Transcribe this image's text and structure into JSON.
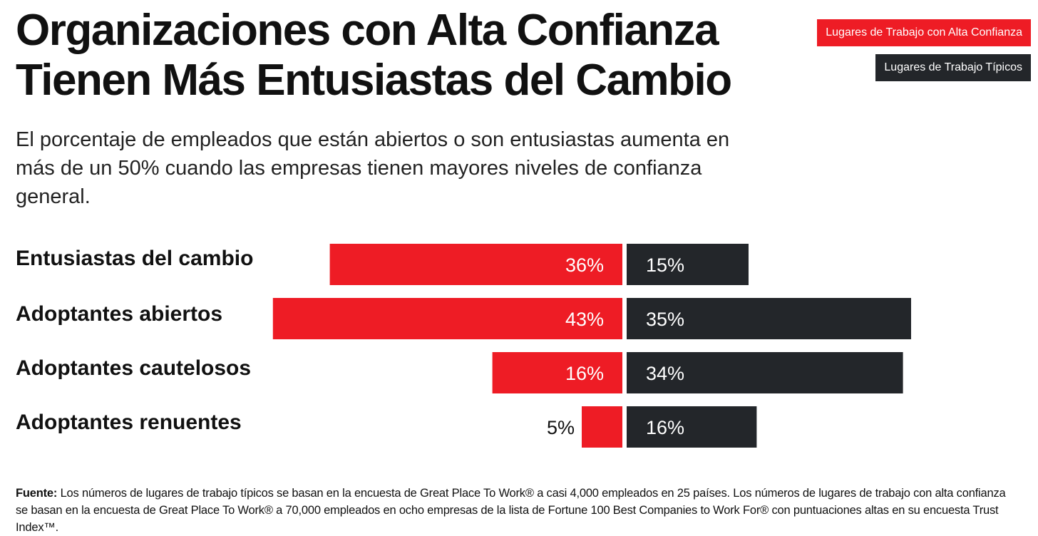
{
  "title_line1": "Organizaciones con Alta Confianza",
  "title_line2": "Tienen Más Entusiastas del Cambio",
  "subtitle": "El porcentaje de empleados que están abiertos o son entusiastas aumenta en más de un 50% cuando las empresas tienen mayores niveles de confianza general.",
  "colors": {
    "high_trust": "#ee1c25",
    "typical": "#23262a",
    "text": "#111111"
  },
  "chart_data": {
    "type": "bar",
    "orientation": "diverging-horizontal",
    "title": "Organizaciones con Alta Confianza Tienen Más Entusiastas del Cambio",
    "categories": [
      "Entusiastas del cambio",
      "Adoptantes abiertos",
      "Adoptantes cautelosos",
      "Adoptantes renuentes"
    ],
    "series": [
      {
        "name": "Lugares de Trabajo con Alta Confianza",
        "values": [
          36,
          43,
          16,
          5
        ],
        "labels": [
          "36%",
          "43%",
          "16%",
          "5%"
        ]
      },
      {
        "name": "Lugares de Trabajo Típicos",
        "values": [
          15,
          35,
          34,
          16
        ],
        "labels": [
          "15%",
          "35%",
          "34%",
          "16%"
        ]
      }
    ],
    "unit": "%",
    "legend_position": "top-right",
    "grid": false
  },
  "footer": {
    "label": "Fuente:",
    "text": "Los números de lugares de trabajo típicos se basan en la encuesta de Great Place To Work® a casi 4,000 empleados en 25 países. Los números de lugares de trabajo con alta confianza se basan en la encuesta de Great Place To Work® a 70,000 empleados en ocho empresas de la lista de Fortune 100 Best Companies to Work For® con puntuaciones altas en su encuesta Trust Index™."
  }
}
